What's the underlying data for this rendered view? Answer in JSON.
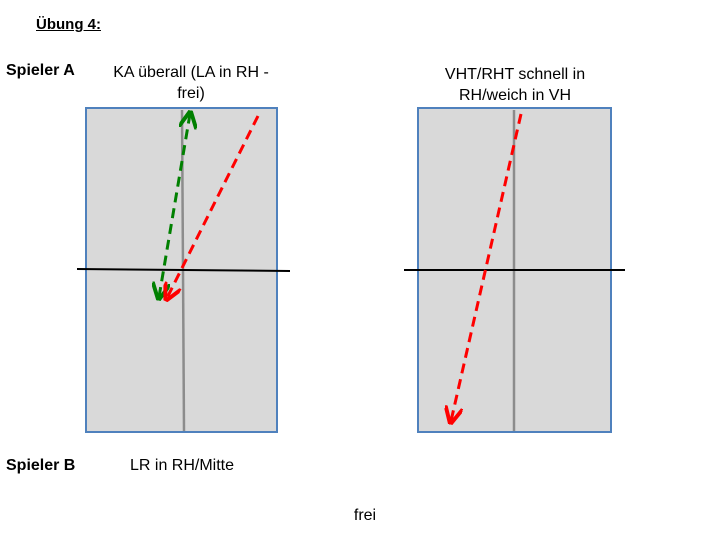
{
  "title": "Übung 4:",
  "labels": {
    "player_a": "Spieler A",
    "player_b": "Spieler B"
  },
  "captions": {
    "left_top_line1": "KA überall (LA in RH -",
    "left_top_line2": "frei)",
    "right_top_line1": "VHT/RHT schnell in",
    "right_top_line2": "RH/weich in VH",
    "bottom_left": "LR in RH/Mitte",
    "bottom_center": "frei"
  },
  "colors": {
    "table_fill": "#d9d9d9",
    "table_border": "#4f81bd",
    "center_line": "#8c8c8c",
    "net": "#000000",
    "arrow_red": "#ff0000",
    "arrow_green": "#008000"
  }
}
